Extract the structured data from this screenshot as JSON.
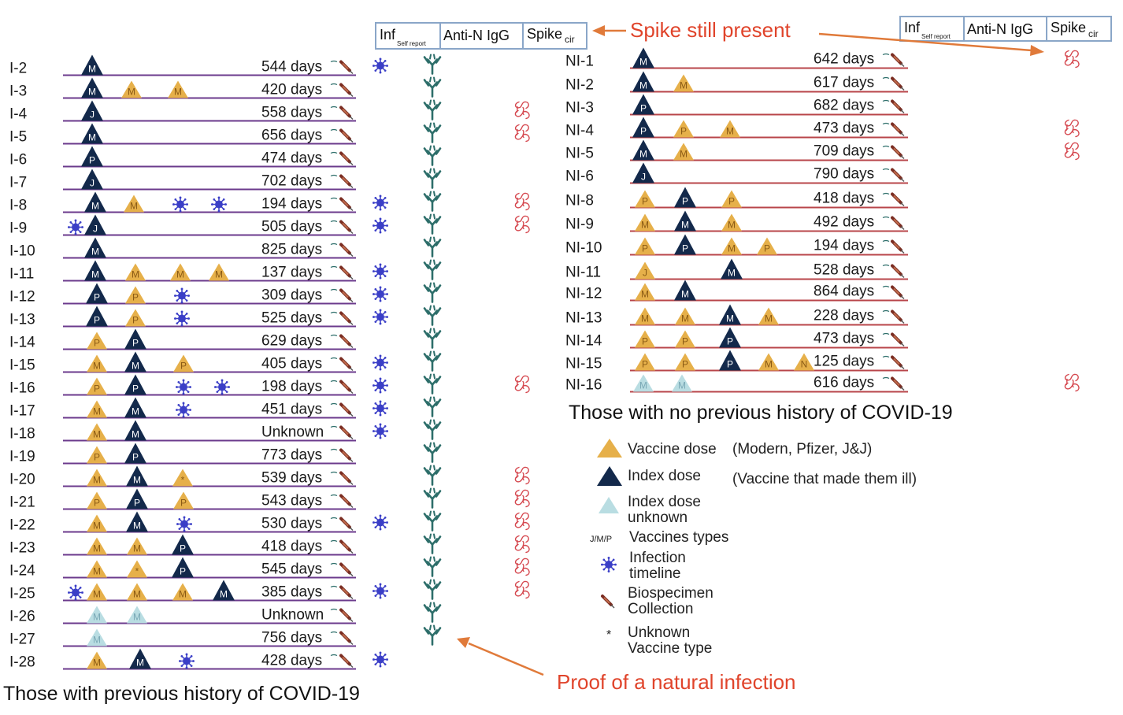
{
  "colors": {
    "vaccine": "#e6b04a",
    "index": "#13294b",
    "unknown_index": "#b9dde2",
    "line_left": "#6b3a8c",
    "line_right": "#b8454a",
    "virus": "#3b3fc7",
    "antibody": "#2d6e6a",
    "spike": "#d5474e",
    "annotation": "#e0442b"
  },
  "left_header": {
    "inf": "Inf",
    "inf_sub": "Self report",
    "anti_n": "Anti-N IgG",
    "spike": "Spike",
    "spike_sub": "cir"
  },
  "right_header": {
    "inf": "Inf",
    "inf_sub": "Self report",
    "anti_n": "Anti-N IgG",
    "spike": "Spike",
    "spike_sub": "cir"
  },
  "annotations": {
    "spike_present": "Spike still present",
    "natural_infection": "Proof of a natural infection"
  },
  "captions": {
    "left": "Those with previous history of COVID-19",
    "right": "Those with  no previous history of COVID-19"
  },
  "legend": [
    {
      "icon": "vaccine-triangle",
      "label": "Vaccine dose",
      "note": "(Modern, Pfizer, J&J)"
    },
    {
      "icon": "index-triangle",
      "label": "Index dose",
      "note": "(Vaccine that made them ill)"
    },
    {
      "icon": "unknown-index-triangle",
      "label": "Index dose unknown",
      "note": ""
    },
    {
      "icon": "vaccine-type-letters",
      "label": "Vaccines types",
      "note": "",
      "glyph": "J/M/P"
    },
    {
      "icon": "virus",
      "label": "Infection timeline",
      "note": ""
    },
    {
      "icon": "syringe",
      "label": "Biospecimen Collection",
      "note": ""
    },
    {
      "icon": "asterisk",
      "label": "Unknown Vaccine type",
      "note": ""
    }
  ],
  "left_rows": [
    {
      "id": "I-2",
      "days": "544 days",
      "inf": true,
      "ab": true,
      "spike": false,
      "marks": [
        {
          "k": "i",
          "t": "M",
          "x": 117
        }
      ]
    },
    {
      "id": "I-3",
      "days": "420 days",
      "inf": false,
      "ab": true,
      "spike": false,
      "marks": [
        {
          "k": "i",
          "t": "M",
          "x": 117
        },
        {
          "k": "v",
          "t": "M",
          "x": 167
        },
        {
          "k": "v",
          "t": "M",
          "x": 226
        }
      ]
    },
    {
      "id": "I-4",
      "days": "558 days",
      "inf": false,
      "ab": true,
      "spike": true,
      "marks": [
        {
          "k": "i",
          "t": "J",
          "x": 117
        }
      ]
    },
    {
      "id": "I-5",
      "days": "656 days",
      "inf": false,
      "ab": true,
      "spike": true,
      "marks": [
        {
          "k": "i",
          "t": "M",
          "x": 117
        }
      ]
    },
    {
      "id": "I-6",
      "days": "474 days",
      "inf": false,
      "ab": true,
      "spike": false,
      "marks": [
        {
          "k": "i",
          "t": "P",
          "x": 117
        }
      ]
    },
    {
      "id": "I-7",
      "days": "702 days",
      "inf": false,
      "ab": true,
      "spike": false,
      "marks": [
        {
          "k": "i",
          "t": "J",
          "x": 117
        }
      ]
    },
    {
      "id": "I-8",
      "days": "194 days",
      "inf": true,
      "ab": true,
      "spike": true,
      "marks": [
        {
          "k": "i",
          "t": "M",
          "x": 121
        },
        {
          "k": "v",
          "t": "M",
          "x": 170
        },
        {
          "k": "x",
          "x": 229
        },
        {
          "k": "x",
          "x": 278
        }
      ]
    },
    {
      "id": "I-9",
      "days": "505 days",
      "inf": true,
      "ab": true,
      "spike": true,
      "marks": [
        {
          "k": "x",
          "x": 96
        },
        {
          "k": "i",
          "t": "J",
          "x": 121
        }
      ]
    },
    {
      "id": "I-10",
      "days": "825 days",
      "inf": false,
      "ab": true,
      "spike": false,
      "marks": [
        {
          "k": "i",
          "t": "M",
          "x": 121
        }
      ]
    },
    {
      "id": "I-11",
      "days": "137 days",
      "inf": true,
      "ab": true,
      "spike": false,
      "marks": [
        {
          "k": "i",
          "t": "M",
          "x": 121
        },
        {
          "k": "v",
          "t": "M",
          "x": 172
        },
        {
          "k": "v",
          "t": "M",
          "x": 229
        },
        {
          "k": "v",
          "t": "M",
          "x": 278
        }
      ]
    },
    {
      "id": "I-12",
      "days": "309 days",
      "inf": true,
      "ab": true,
      "spike": false,
      "marks": [
        {
          "k": "i",
          "t": "P",
          "x": 123
        },
        {
          "k": "v",
          "t": "P",
          "x": 172
        },
        {
          "k": "x",
          "x": 231
        }
      ]
    },
    {
      "id": "I-13",
      "days": "525 days",
      "inf": true,
      "ab": true,
      "spike": false,
      "marks": [
        {
          "k": "i",
          "t": "P",
          "x": 123
        },
        {
          "k": "v",
          "t": "P",
          "x": 172
        },
        {
          "k": "x",
          "x": 231
        }
      ]
    },
    {
      "id": "I-14",
      "days": "629 days",
      "inf": false,
      "ab": true,
      "spike": false,
      "marks": [
        {
          "k": "v",
          "t": "P",
          "x": 123
        },
        {
          "k": "i",
          "t": "P",
          "x": 172
        }
      ]
    },
    {
      "id": "I-15",
      "days": "405 days",
      "inf": true,
      "ab": true,
      "spike": false,
      "marks": [
        {
          "k": "v",
          "t": "M",
          "x": 123
        },
        {
          "k": "i",
          "t": "M",
          "x": 172
        },
        {
          "k": "v",
          "t": "P",
          "x": 233
        }
      ]
    },
    {
      "id": "I-16",
      "days": "198 days",
      "inf": true,
      "ab": true,
      "spike": true,
      "marks": [
        {
          "k": "v",
          "t": "P",
          "x": 123
        },
        {
          "k": "i",
          "t": "P",
          "x": 172
        },
        {
          "k": "x",
          "x": 233
        },
        {
          "k": "x",
          "x": 282
        }
      ]
    },
    {
      "id": "I-17",
      "days": "451 days",
      "inf": true,
      "ab": true,
      "spike": false,
      "marks": [
        {
          "k": "v",
          "t": "M",
          "x": 123
        },
        {
          "k": "i",
          "t": "M",
          "x": 172
        },
        {
          "k": "x",
          "x": 233
        }
      ]
    },
    {
      "id": "I-18",
      "days": "Unknown",
      "inf": true,
      "ab": true,
      "spike": false,
      "marks": [
        {
          "k": "v",
          "t": "M",
          "x": 123
        },
        {
          "k": "i",
          "t": "M",
          "x": 172
        }
      ]
    },
    {
      "id": "I-19",
      "days": "773 days",
      "inf": false,
      "ab": true,
      "spike": false,
      "marks": [
        {
          "k": "v",
          "t": "P",
          "x": 123
        },
        {
          "k": "i",
          "t": "P",
          "x": 172
        }
      ]
    },
    {
      "id": "I-20",
      "days": "539 days",
      "inf": false,
      "ab": true,
      "spike": true,
      "marks": [
        {
          "k": "v",
          "t": "M",
          "x": 123
        },
        {
          "k": "i",
          "t": "M",
          "x": 174
        },
        {
          "k": "v",
          "t": "*",
          "x": 232
        }
      ]
    },
    {
      "id": "I-21",
      "days": "543 days",
      "inf": false,
      "ab": true,
      "spike": true,
      "marks": [
        {
          "k": "v",
          "t": "P",
          "x": 123
        },
        {
          "k": "i",
          "t": "P",
          "x": 174
        },
        {
          "k": "v",
          "t": "P",
          "x": 233
        }
      ]
    },
    {
      "id": "I-22",
      "days": "530 days",
      "inf": true,
      "ab": true,
      "spike": true,
      "marks": [
        {
          "k": "v",
          "t": "M",
          "x": 123
        },
        {
          "k": "i",
          "t": "M",
          "x": 174
        },
        {
          "k": "x",
          "x": 234
        }
      ]
    },
    {
      "id": "I-23",
      "days": "418 days",
      "inf": false,
      "ab": true,
      "spike": true,
      "marks": [
        {
          "k": "v",
          "t": "M",
          "x": 123
        },
        {
          "k": "v",
          "t": "M",
          "x": 174
        },
        {
          "k": "i",
          "t": "P",
          "x": 232
        }
      ]
    },
    {
      "id": "I-24",
      "days": "545 days",
      "inf": false,
      "ab": true,
      "spike": true,
      "marks": [
        {
          "k": "v",
          "t": "M",
          "x": 123
        },
        {
          "k": "v",
          "t": "*",
          "x": 174
        },
        {
          "k": "i",
          "t": "P",
          "x": 232
        }
      ]
    },
    {
      "id": "I-25",
      "days": "385 days",
      "inf": true,
      "ab": true,
      "spike": true,
      "marks": [
        {
          "k": "x",
          "x": 96
        },
        {
          "k": "v",
          "t": "M",
          "x": 123
        },
        {
          "k": "v",
          "t": "M",
          "x": 174
        },
        {
          "k": "v",
          "t": "M",
          "x": 232
        },
        {
          "k": "i",
          "t": "M",
          "x": 284
        }
      ]
    },
    {
      "id": "I-26",
      "days": "Unknown",
      "inf": false,
      "ab": true,
      "spike": false,
      "marks": [
        {
          "k": "u",
          "t": "M",
          "x": 123
        },
        {
          "k": "u",
          "t": "M",
          "x": 174
        }
      ]
    },
    {
      "id": "I-27",
      "days": "756 days",
      "inf": false,
      "ab": true,
      "spike": false,
      "marks": [
        {
          "k": "u",
          "t": "M",
          "x": 123
        }
      ]
    },
    {
      "id": "I-28",
      "days": "428 days",
      "inf": true,
      "ab": false,
      "spike": false,
      "marks": [
        {
          "k": "v",
          "t": "M",
          "x": 123
        },
        {
          "k": "i",
          "t": "M",
          "x": 178
        },
        {
          "k": "x",
          "x": 237
        }
      ]
    }
  ],
  "right_rows": [
    {
      "id": "NI-1",
      "days": "642 days",
      "spike": true,
      "marks": [
        {
          "k": "i",
          "t": "M",
          "x": 817
        }
      ]
    },
    {
      "id": "NI-2",
      "days": "617 days",
      "spike": false,
      "marks": [
        {
          "k": "i",
          "t": "M",
          "x": 817
        },
        {
          "k": "v",
          "t": "M",
          "x": 868
        }
      ]
    },
    {
      "id": "NI-3",
      "days": "682 days",
      "spike": false,
      "marks": [
        {
          "k": "i",
          "t": "P",
          "x": 817
        }
      ]
    },
    {
      "id": "NI-4",
      "days": "473 days",
      "spike": true,
      "marks": [
        {
          "k": "i",
          "t": "P",
          "x": 817
        },
        {
          "k": "v",
          "t": "P",
          "x": 868
        },
        {
          "k": "v",
          "t": "M",
          "x": 927
        }
      ]
    },
    {
      "id": "NI-5",
      "days": "709 days",
      "spike": true,
      "marks": [
        {
          "k": "i",
          "t": "M",
          "x": 817
        },
        {
          "k": "v",
          "t": "M",
          "x": 868
        }
      ]
    },
    {
      "id": "NI-6",
      "days": "790 days",
      "spike": false,
      "marks": [
        {
          "k": "i",
          "t": "J",
          "x": 817
        }
      ]
    },
    {
      "id": "NI-8",
      "days": "418 days",
      "spike": false,
      "marks": [
        {
          "k": "v",
          "t": "P",
          "x": 819
        },
        {
          "k": "i",
          "t": "P",
          "x": 870
        },
        {
          "k": "v",
          "t": "P",
          "x": 929
        }
      ]
    },
    {
      "id": "NI-9",
      "days": "492 days",
      "spike": false,
      "marks": [
        {
          "k": "v",
          "t": "M",
          "x": 819
        },
        {
          "k": "i",
          "t": "M",
          "x": 870
        },
        {
          "k": "v",
          "t": "M",
          "x": 929
        }
      ]
    },
    {
      "id": "NI-10",
      "days": "194 days",
      "spike": false,
      "marks": [
        {
          "k": "v",
          "t": "P",
          "x": 819
        },
        {
          "k": "i",
          "t": "P",
          "x": 870
        },
        {
          "k": "v",
          "t": "M",
          "x": 929
        },
        {
          "k": "v",
          "t": "P",
          "x": 974
        }
      ]
    },
    {
      "id": "NI-11",
      "days": "528 days",
      "spike": false,
      "marks": [
        {
          "k": "v",
          "t": "J",
          "x": 819
        },
        {
          "k": "i",
          "t": "M",
          "x": 929
        }
      ]
    },
    {
      "id": "NI-12",
      "days": "864 days",
      "spike": false,
      "marks": [
        {
          "k": "v",
          "t": "M",
          "x": 819
        },
        {
          "k": "i",
          "t": "M",
          "x": 870
        }
      ]
    },
    {
      "id": "NI-13",
      "days": "228 days",
      "spike": false,
      "marks": [
        {
          "k": "v",
          "t": "M",
          "x": 819
        },
        {
          "k": "v",
          "t": "M",
          "x": 870
        },
        {
          "k": "i",
          "t": "M",
          "x": 927
        },
        {
          "k": "v",
          "t": "M",
          "x": 976
        }
      ]
    },
    {
      "id": "NI-14",
      "days": "473 days",
      "spike": false,
      "marks": [
        {
          "k": "v",
          "t": "P",
          "x": 819
        },
        {
          "k": "v",
          "t": "P",
          "x": 870
        },
        {
          "k": "i",
          "t": "P",
          "x": 927
        }
      ]
    },
    {
      "id": "NI-15",
      "days": "125 days",
      "spike": false,
      "marks": [
        {
          "k": "v",
          "t": "P",
          "x": 819
        },
        {
          "k": "v",
          "t": "P",
          "x": 870
        },
        {
          "k": "i",
          "t": "P",
          "x": 927
        },
        {
          "k": "v",
          "t": "M",
          "x": 976
        },
        {
          "k": "v",
          "t": "N",
          "x": 1021
        }
      ]
    },
    {
      "id": "NI-16",
      "days": "616 days",
      "spike": true,
      "marks": [
        {
          "k": "u",
          "t": "M",
          "x": 817
        },
        {
          "k": "u",
          "t": "M",
          "x": 866
        }
      ]
    }
  ]
}
